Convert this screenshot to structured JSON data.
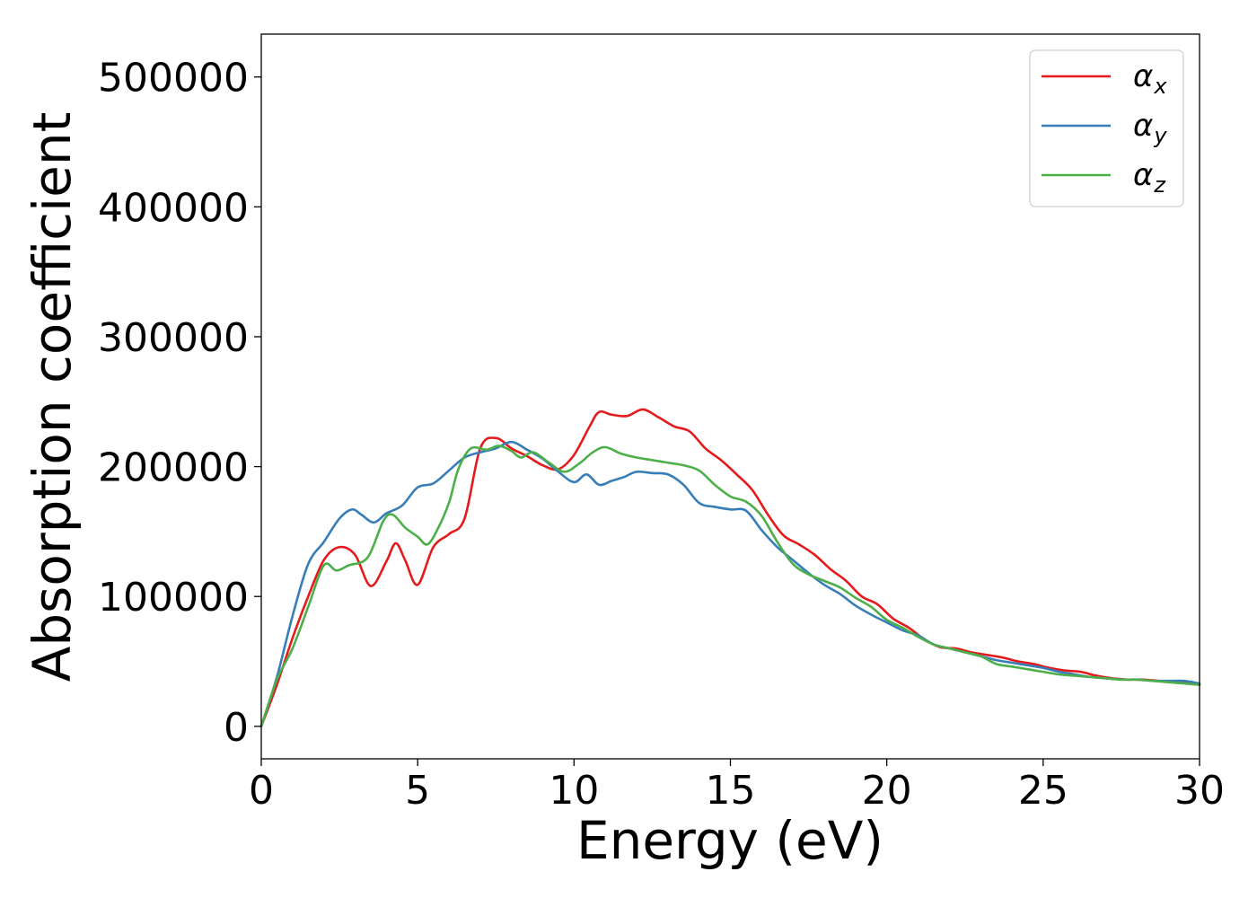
{
  "chart_data": {
    "type": "line",
    "title": "",
    "xlabel": "Energy (eV)",
    "ylabel": "Absorption coefficient",
    "xlim": [
      0,
      30
    ],
    "ylim": [
      -25000,
      533000
    ],
    "xticks": [
      0,
      5,
      10,
      15,
      20,
      25,
      30
    ],
    "yticks": [
      0,
      100000,
      200000,
      300000,
      400000,
      500000
    ],
    "xtick_labels": [
      "0",
      "5",
      "10",
      "15",
      "20",
      "25",
      "30"
    ],
    "ytick_labels": [
      "0",
      "100000",
      "200000",
      "300000",
      "400000",
      "500000"
    ],
    "grid": false,
    "legend_position": "top-right",
    "series": [
      {
        "name": "α_x",
        "legend_base": "α",
        "legend_sub": "x",
        "color": "#e41a1c",
        "x": [
          0,
          0.5,
          1.0,
          1.5,
          2.0,
          2.5,
          3.0,
          3.5,
          4.0,
          4.3,
          4.6,
          5.0,
          5.5,
          6.0,
          6.5,
          7.0,
          7.5,
          8.0,
          8.5,
          9.0,
          9.5,
          10.0,
          10.5,
          10.8,
          11.2,
          11.7,
          12.2,
          12.7,
          13.2,
          13.7,
          14.2,
          14.7,
          15.2,
          15.7,
          16.2,
          16.7,
          17.2,
          17.7,
          18.2,
          18.7,
          19.2,
          19.7,
          20.2,
          20.7,
          21.2,
          21.7,
          22.2,
          22.7,
          23.2,
          23.7,
          24.2,
          24.7,
          25.2,
          25.7,
          26.2,
          26.7,
          27.2,
          27.7,
          28.2,
          28.7,
          29.2,
          29.7,
          30.0
        ],
        "y": [
          0,
          32000,
          68000,
          100000,
          128000,
          138000,
          132000,
          108000,
          127000,
          141000,
          128000,
          109000,
          138000,
          148000,
          160000,
          214000,
          222000,
          214000,
          208000,
          201000,
          198000,
          209000,
          231000,
          242000,
          240000,
          239000,
          244000,
          238000,
          231000,
          227000,
          214000,
          205000,
          194000,
          182000,
          163000,
          147000,
          140000,
          132000,
          121000,
          112000,
          100000,
          94000,
          83000,
          76000,
          67000,
          61000,
          60000,
          57000,
          55000,
          53000,
          50000,
          48000,
          45000,
          43000,
          42000,
          39000,
          37000,
          36000,
          36000,
          35000,
          34000,
          33000,
          32000
        ]
      },
      {
        "name": "α_y",
        "legend_base": "α",
        "legend_sub": "y",
        "color": "#377eb8",
        "x": [
          0,
          0.5,
          1.0,
          1.5,
          2.0,
          2.5,
          2.9,
          3.2,
          3.6,
          4.0,
          4.5,
          5.0,
          5.5,
          6.0,
          6.5,
          7.0,
          7.5,
          8.0,
          8.5,
          9.0,
          9.5,
          10.0,
          10.4,
          10.8,
          11.2,
          11.6,
          12.0,
          12.5,
          13.0,
          13.5,
          14.0,
          14.5,
          15.0,
          15.5,
          16.0,
          16.5,
          17.0,
          17.5,
          18.0,
          18.5,
          19.0,
          19.5,
          20.0,
          20.5,
          21.0,
          21.5,
          22.0,
          22.5,
          23.0,
          23.5,
          24.0,
          24.5,
          25.0,
          25.5,
          26.0,
          26.5,
          27.0,
          27.5,
          28.0,
          28.5,
          29.0,
          29.5,
          30.0
        ],
        "y": [
          0,
          38000,
          85000,
          125000,
          142000,
          160000,
          167000,
          163000,
          157000,
          164000,
          170000,
          184000,
          187000,
          197000,
          207000,
          211000,
          214000,
          219000,
          213000,
          206000,
          196000,
          188000,
          194000,
          186000,
          189000,
          192000,
          196000,
          195000,
          194000,
          186000,
          172000,
          169000,
          167000,
          166000,
          151000,
          138000,
          128000,
          118000,
          109000,
          102000,
          93000,
          86000,
          80000,
          74000,
          70000,
          63000,
          60000,
          57000,
          54000,
          51000,
          49000,
          47000,
          45000,
          42000,
          40000,
          38000,
          37000,
          36000,
          36000,
          35000,
          35000,
          35000,
          33000
        ]
      },
      {
        "name": "α_z",
        "legend_base": "α",
        "legend_sub": "z",
        "color": "#4daf4a",
        "x": [
          0,
          0.5,
          1.0,
          1.5,
          2.0,
          2.4,
          2.8,
          3.4,
          3.9,
          4.2,
          4.6,
          5.0,
          5.3,
          5.6,
          6.0,
          6.3,
          6.7,
          7.2,
          7.6,
          8.0,
          8.3,
          8.7,
          9.2,
          9.7,
          10.2,
          10.6,
          11.0,
          11.5,
          12.0,
          12.5,
          13.0,
          13.5,
          14.0,
          14.5,
          15.0,
          15.5,
          16.0,
          16.5,
          17.0,
          17.5,
          18.0,
          18.5,
          19.0,
          19.5,
          20.0,
          20.5,
          21.0,
          21.5,
          22.0,
          22.5,
          23.0,
          23.5,
          24.0,
          24.5,
          25.0,
          25.5,
          26.0,
          26.5,
          27.0,
          27.5,
          28.0,
          28.5,
          29.0,
          29.5,
          30.0
        ],
        "y": [
          0,
          36000,
          60000,
          92000,
          124000,
          120000,
          124000,
          130000,
          158000,
          163000,
          153000,
          146000,
          140000,
          150000,
          172000,
          198000,
          214000,
          213000,
          216000,
          212000,
          207000,
          211000,
          203000,
          196000,
          203000,
          211000,
          215000,
          210000,
          207000,
          205000,
          203000,
          201000,
          197000,
          186000,
          177000,
          173000,
          162000,
          142000,
          125000,
          117000,
          112000,
          107000,
          99000,
          92000,
          82000,
          76000,
          69000,
          63000,
          60000,
          57000,
          54000,
          48000,
          46000,
          44000,
          42000,
          40000,
          39000,
          38000,
          37000,
          36000,
          36000,
          35000,
          34000,
          33000,
          32000
        ]
      }
    ]
  }
}
